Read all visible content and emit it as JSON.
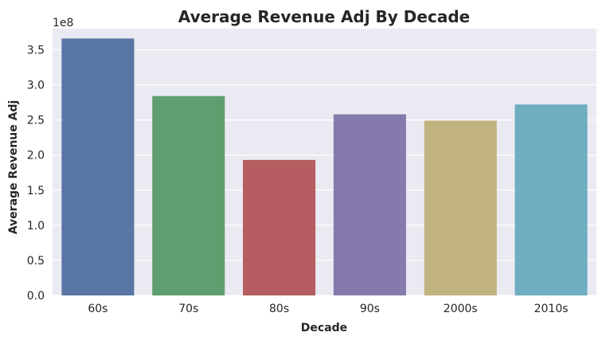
{
  "chart_data": {
    "type": "bar",
    "title": "Average Revenue Adj By Decade",
    "xlabel": "Decade",
    "ylabel": "Average Revenue Adj",
    "y_offset_label": "1e8",
    "categories": [
      "60s",
      "70s",
      "80s",
      "90s",
      "2000s",
      "2010s"
    ],
    "values": [
      366000000,
      284000000,
      193000000,
      258000000,
      249000000,
      272000000
    ],
    "colors": [
      "#5875a4",
      "#5f9e6e",
      "#b55d60",
      "#857aab",
      "#c1b37f",
      "#6fadc0"
    ],
    "ylim": [
      0,
      380000000
    ],
    "yticks": [
      0,
      50000000,
      100000000,
      150000000,
      200000000,
      250000000,
      300000000,
      350000000
    ],
    "ytick_labels": [
      "0.0",
      "0.5",
      "1.0",
      "1.5",
      "2.0",
      "2.5",
      "3.0",
      "3.5"
    ],
    "grid": true,
    "background": "#eaeaf2",
    "grid_color": "#ffffff"
  }
}
